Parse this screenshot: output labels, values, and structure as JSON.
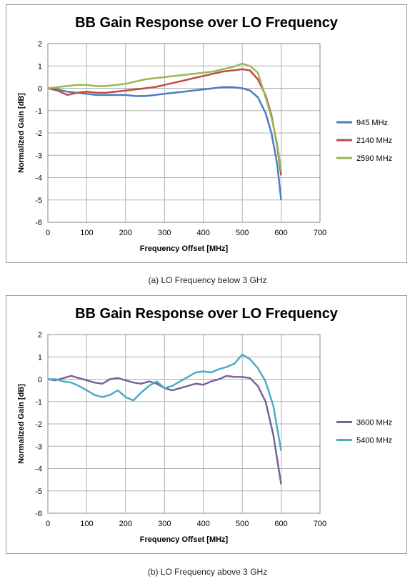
{
  "captions": {
    "a": "(a)  LO Frequency below 3 GHz",
    "b": "(b)  LO Frequency above 3 GHz"
  },
  "chart_data": [
    {
      "type": "line",
      "title": "BB Gain Response over LO Frequency",
      "xlabel": "Frequency Offset [MHz]",
      "ylabel": "Normalized Gain [dB]",
      "xlim": [
        0,
        700
      ],
      "ylim": [
        -6,
        2
      ],
      "xticks": [
        0,
        100,
        200,
        300,
        400,
        500,
        600,
        700
      ],
      "yticks": [
        2,
        1,
        0,
        -1,
        -2,
        -3,
        -4,
        -5,
        -6
      ],
      "grid": true,
      "legend": "right",
      "series": [
        {
          "name": "945 MHz",
          "color": "#4a7ebb",
          "x": [
            0,
            25,
            50,
            75,
            100,
            125,
            150,
            175,
            200,
            225,
            250,
            275,
            300,
            325,
            350,
            375,
            400,
            425,
            450,
            475,
            500,
            520,
            540,
            560,
            575,
            590,
            600
          ],
          "y": [
            0,
            -0.05,
            -0.15,
            -0.2,
            -0.25,
            -0.3,
            -0.3,
            -0.3,
            -0.3,
            -0.35,
            -0.35,
            -0.3,
            -0.25,
            -0.2,
            -0.15,
            -0.1,
            -0.05,
            0,
            0.05,
            0.05,
            0,
            -0.1,
            -0.4,
            -1.1,
            -2.0,
            -3.4,
            -5.0
          ]
        },
        {
          "name": "2140 MHz",
          "color": "#be4b48",
          "x": [
            0,
            25,
            50,
            75,
            100,
            125,
            150,
            175,
            200,
            225,
            250,
            275,
            300,
            325,
            350,
            375,
            400,
            425,
            450,
            475,
            500,
            520,
            540,
            560,
            575,
            590,
            600
          ],
          "y": [
            0,
            -0.1,
            -0.3,
            -0.2,
            -0.15,
            -0.2,
            -0.2,
            -0.15,
            -0.1,
            -0.05,
            0,
            0.05,
            0.15,
            0.25,
            0.35,
            0.45,
            0.55,
            0.65,
            0.75,
            0.8,
            0.85,
            0.8,
            0.4,
            -0.3,
            -1.2,
            -2.6,
            -3.9
          ]
        },
        {
          "name": "2590 MHz",
          "color": "#98b954",
          "x": [
            0,
            25,
            50,
            75,
            100,
            125,
            150,
            175,
            200,
            225,
            250,
            275,
            300,
            325,
            350,
            375,
            400,
            425,
            450,
            475,
            500,
            520,
            540,
            560,
            575,
            590,
            600
          ],
          "y": [
            0,
            0.05,
            0.1,
            0.15,
            0.15,
            0.1,
            0.1,
            0.15,
            0.2,
            0.3,
            0.4,
            0.45,
            0.5,
            0.55,
            0.6,
            0.65,
            0.7,
            0.75,
            0.85,
            0.95,
            1.1,
            1.0,
            0.7,
            -0.4,
            -1.3,
            -2.5,
            -3.7
          ]
        }
      ]
    },
    {
      "type": "line",
      "title": "BB Gain Response over LO Frequency",
      "xlabel": "Frequency Offset [MHz]",
      "ylabel": "Normalized Gain [dB]",
      "xlim": [
        0,
        700
      ],
      "ylim": [
        -6,
        2
      ],
      "xticks": [
        0,
        100,
        200,
        300,
        400,
        500,
        600,
        700
      ],
      "yticks": [
        2,
        1,
        0,
        -1,
        -2,
        -3,
        -4,
        -5,
        -6
      ],
      "grid": true,
      "legend": "right",
      "series": [
        {
          "name": "3600 MHz",
          "color": "#7d5fa0",
          "x": [
            0,
            20,
            40,
            60,
            80,
            100,
            120,
            140,
            160,
            180,
            200,
            220,
            240,
            260,
            280,
            300,
            320,
            340,
            360,
            380,
            400,
            420,
            440,
            460,
            480,
            500,
            520,
            540,
            560,
            580,
            600
          ],
          "y": [
            0,
            -0.05,
            0.05,
            0.15,
            0.05,
            -0.05,
            -0.15,
            -0.2,
            0,
            0.05,
            -0.05,
            -0.15,
            -0.2,
            -0.1,
            -0.2,
            -0.4,
            -0.5,
            -0.4,
            -0.3,
            -0.2,
            -0.25,
            -0.1,
            0,
            0.15,
            0.1,
            0.1,
            0.05,
            -0.3,
            -1.0,
            -2.5,
            -4.7
          ]
        },
        {
          "name": "5400 MHz",
          "color": "#4bacc6",
          "x": [
            0,
            20,
            40,
            60,
            80,
            100,
            120,
            140,
            160,
            180,
            200,
            220,
            240,
            260,
            280,
            300,
            320,
            340,
            360,
            380,
            400,
            420,
            440,
            460,
            480,
            500,
            520,
            540,
            560,
            580,
            600
          ],
          "y": [
            0,
            0,
            -0.1,
            -0.15,
            -0.3,
            -0.5,
            -0.7,
            -0.8,
            -0.7,
            -0.5,
            -0.8,
            -0.95,
            -0.6,
            -0.3,
            -0.1,
            -0.4,
            -0.3,
            -0.1,
            0.1,
            0.3,
            0.35,
            0.3,
            0.45,
            0.55,
            0.7,
            1.1,
            0.9,
            0.5,
            -0.1,
            -1.2,
            -3.2
          ]
        }
      ]
    }
  ]
}
